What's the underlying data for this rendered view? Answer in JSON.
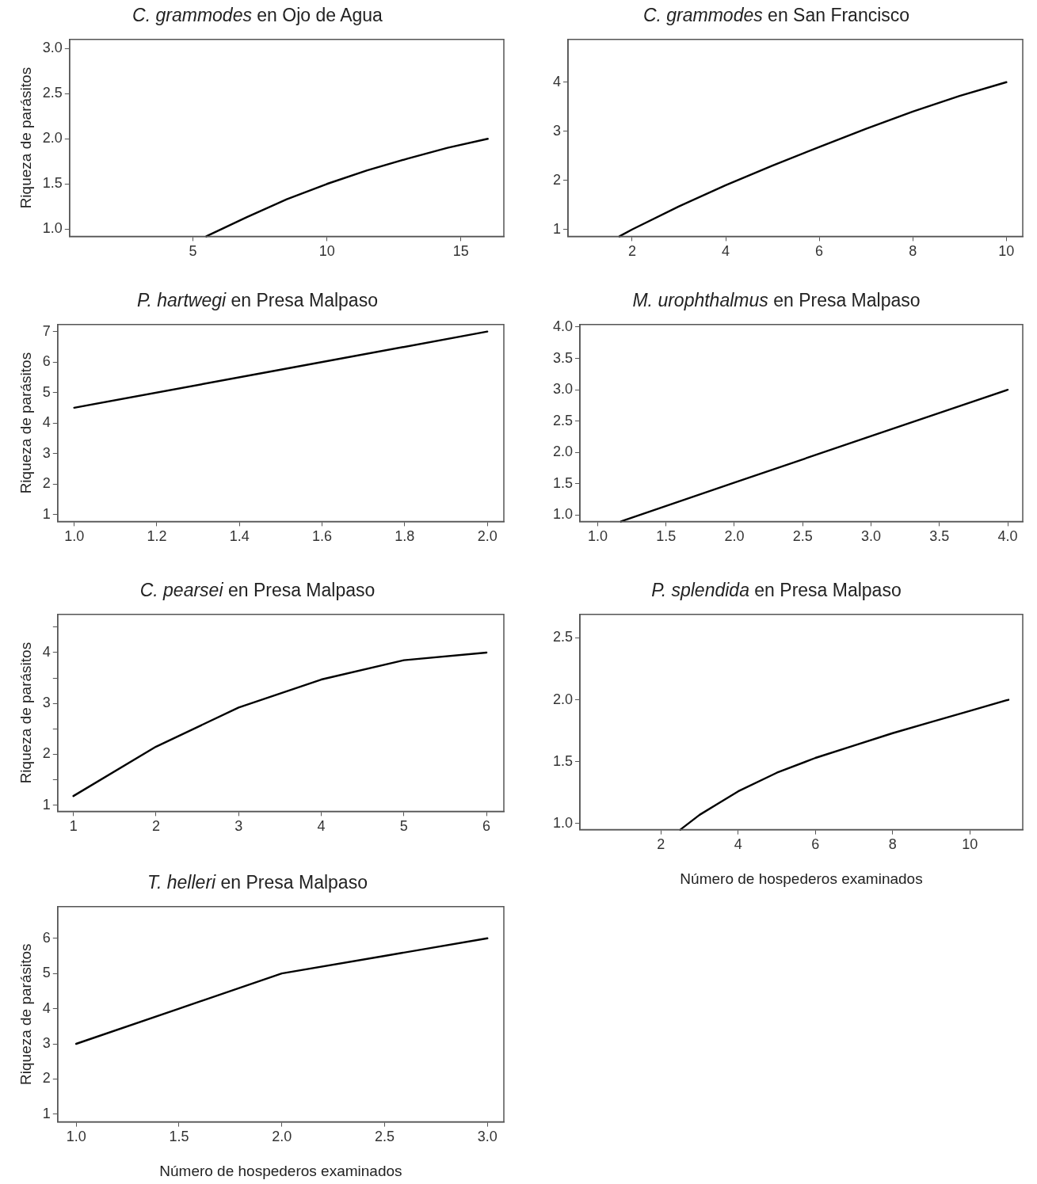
{
  "chart_data": [
    {
      "type": "line",
      "title": "C. grammodes en Ojo de Agua",
      "ylabel": "Riqueza de parásitos",
      "color": "#000000",
      "x": [
        5.5,
        7,
        8.5,
        10,
        11.5,
        13,
        14.5,
        16
      ],
      "values": [
        0.92,
        1.13,
        1.33,
        1.5,
        1.65,
        1.78,
        1.9,
        2.0
      ],
      "xlim": [
        0.4,
        16.6
      ],
      "ylim": [
        0.92,
        3.1
      ],
      "xticks": [
        5,
        10,
        15
      ],
      "yticks": [
        {
          "value": 1,
          "label": "1.0"
        },
        1.5,
        {
          "value": 2,
          "label": "2.0"
        },
        2.5,
        {
          "value": 3,
          "label": "3.0"
        }
      ]
    },
    {
      "type": "line",
      "title": "C. grammodes en San Francisco",
      "color": "#000000",
      "x": [
        1.73,
        2,
        3,
        4,
        5,
        6,
        7,
        8,
        9,
        10
      ],
      "values": [
        0.86,
        1.0,
        1.47,
        1.9,
        2.3,
        2.68,
        3.05,
        3.4,
        3.72,
        4.0
      ],
      "xlim": [
        0.63,
        10.35
      ],
      "ylim": [
        0.86,
        4.87
      ],
      "xticks": [
        2,
        4,
        6,
        8,
        10
      ],
      "yticks": [
        1,
        2,
        3,
        4
      ]
    },
    {
      "type": "line",
      "title": "P. hartwegi en Presa Malpaso",
      "ylabel": "Riqueza de parásitos",
      "color": "#000000",
      "x": [
        1,
        1.5,
        2
      ],
      "values": [
        4.5,
        5.75,
        7
      ],
      "xlim": [
        0.96,
        2.04
      ],
      "ylim": [
        0.77,
        7.23
      ],
      "xticks": [
        {
          "value": 1,
          "label": "1.0"
        },
        1.2,
        1.4,
        1.6,
        1.8,
        {
          "value": 2,
          "label": "2.0"
        }
      ],
      "yticks": [
        1,
        2,
        3,
        4,
        5,
        6,
        7
      ]
    },
    {
      "type": "line",
      "title": "M. urophthalmus en Presa Malpaso",
      "color": "#000000",
      "x": [
        1.17,
        2,
        3,
        4
      ],
      "values": [
        0.9,
        1.52,
        2.26,
        3.0
      ],
      "xlim": [
        0.87,
        4.11
      ],
      "ylim": [
        0.9,
        4.04
      ],
      "xticks": [
        {
          "value": 1,
          "label": "1.0"
        },
        1.5,
        {
          "value": 2,
          "label": "2.0"
        },
        2.5,
        {
          "value": 3,
          "label": "3.0"
        },
        3.5,
        {
          "value": 4,
          "label": "4.0"
        }
      ],
      "yticks": [
        {
          "value": 1,
          "label": "1.0"
        },
        1.5,
        {
          "value": 2,
          "label": "2.0"
        },
        2.5,
        {
          "value": 3,
          "label": "3.0"
        },
        3.5,
        {
          "value": 4,
          "label": "4.0"
        }
      ]
    },
    {
      "type": "line",
      "title": "C. pearsei en Presa Malpaso",
      "ylabel": "Riqueza de parásitos",
      "color": "#000000",
      "x": [
        1,
        2,
        3,
        4,
        5,
        6
      ],
      "values": [
        1.18,
        2.15,
        2.92,
        3.47,
        3.85,
        4.0
      ],
      "xlim": [
        0.81,
        6.21
      ],
      "ylim": [
        0.88,
        4.75
      ],
      "xticks": [
        1,
        2,
        3,
        4,
        5,
        6
      ],
      "yticks": [
        1,
        {
          "value": 1.5,
          "label": null
        },
        2,
        {
          "value": 2.5,
          "label": null
        },
        3,
        {
          "value": 3.5,
          "label": null
        },
        4,
        {
          "value": 4.5,
          "label": null
        }
      ]
    },
    {
      "type": "line",
      "title": "P. splendida en Presa Malpaso",
      "xlabel": "Número de hospederos examinados",
      "color": "#000000",
      "x": [
        2.5,
        3,
        4,
        5,
        6,
        7,
        8,
        9,
        10,
        11
      ],
      "values": [
        0.95,
        1.07,
        1.26,
        1.41,
        1.53,
        1.63,
        1.73,
        1.82,
        1.91,
        2.0
      ],
      "xlim": [
        -0.1,
        11.37
      ],
      "ylim": [
        0.95,
        2.69
      ],
      "xticks": [
        2,
        4,
        6,
        8,
        10
      ],
      "yticks": [
        {
          "value": 1,
          "label": "1.0"
        },
        1.5,
        {
          "value": 2,
          "label": "2.0"
        },
        2.5
      ]
    },
    {
      "type": "line",
      "title": "T. helleri en Presa Malpaso",
      "xlabel": "Número de hospederos examinados",
      "ylabel": "Riqueza de parásitos",
      "color": "#000000",
      "x": [
        1,
        1.5,
        2,
        2.5,
        3
      ],
      "values": [
        3,
        4,
        5,
        5.5,
        6
      ],
      "xlim": [
        0.91,
        3.08
      ],
      "ylim": [
        0.78,
        6.9
      ],
      "xticks": [
        {
          "value": 1,
          "label": "1.0"
        },
        1.5,
        {
          "value": 2,
          "label": "2.0"
        },
        2.5,
        {
          "value": 3,
          "label": "3.0"
        }
      ],
      "yticks": [
        1,
        2,
        3,
        4,
        5,
        6
      ]
    }
  ]
}
